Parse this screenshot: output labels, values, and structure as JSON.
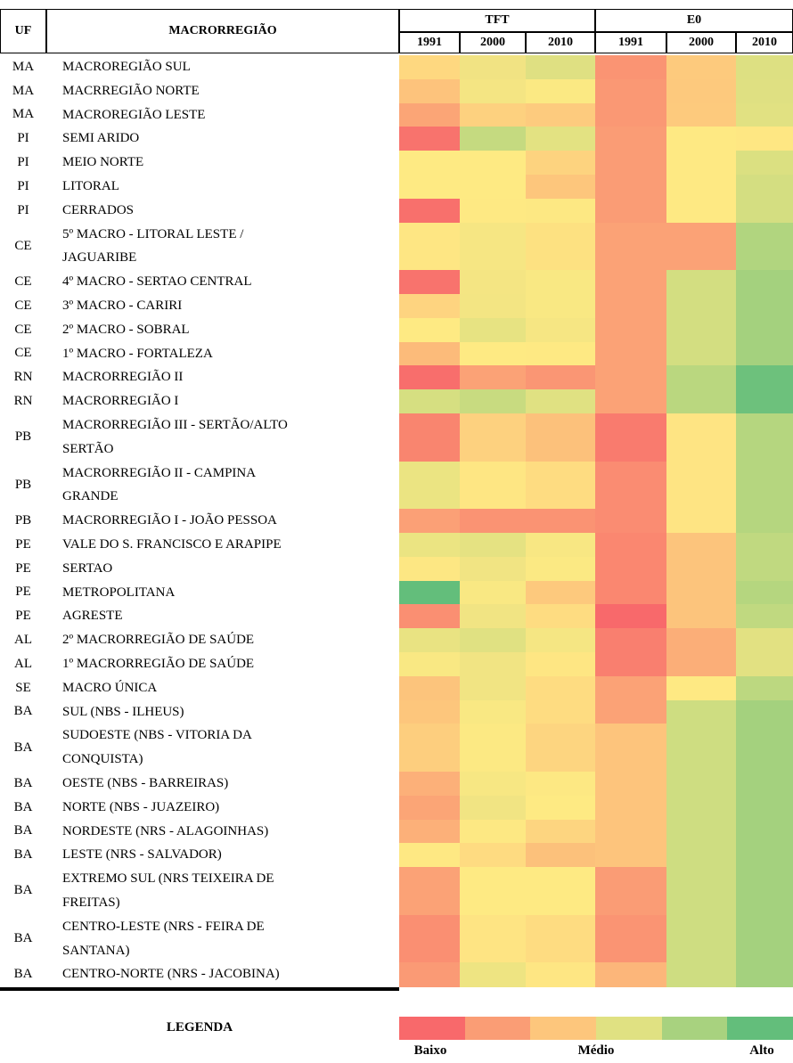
{
  "table": {
    "headers": {
      "uf": "UF",
      "macro": "MACRORREGIÃO",
      "groups": [
        "TFT",
        "E0"
      ],
      "years": [
        "1991",
        "2000",
        "2010",
        "1991",
        "2000",
        "2010"
      ]
    },
    "rows": [
      {
        "uf": "MA",
        "macro": [
          "MACROREGIÃO SUL"
        ],
        "colors": [
          "#fed880",
          "#f1e383",
          "#dfe082",
          "#fa9473",
          "#fdca7d",
          "#dde082"
        ]
      },
      {
        "uf": "MA",
        "macro": [
          "MACRREGIÃO NORTE"
        ],
        "colors": [
          "#fdc37c",
          "#f4e583",
          "#fbe983",
          "#fa9874",
          "#fdc97d",
          "#dfe082"
        ]
      },
      {
        "uf": "MA",
        "macro": [
          "MACROREGIÃO LESTE"
        ],
        "colors": [
          "#fba576",
          "#fdd17f",
          "#fdcb7e",
          "#fa9874",
          "#fdca7d",
          "#e1e182"
        ]
      },
      {
        "uf": "PI",
        "macro": [
          "SEMI ARIDO"
        ],
        "colors": [
          "#f8736d",
          "#c5da80",
          "#e3e282",
          "#fa9c75",
          "#fee983",
          "#fee783"
        ]
      },
      {
        "uf": "PI",
        "macro": [
          "MEIO NORTE"
        ],
        "colors": [
          "#feea83",
          "#feea83",
          "#fdd37f",
          "#fa9c75",
          "#fee983",
          "#dbe081"
        ]
      },
      {
        "uf": "PI",
        "macro": [
          "LITORAL"
        ],
        "colors": [
          "#feea83",
          "#feea83",
          "#fdc67c",
          "#fa9c75",
          "#fee983",
          "#d4de81"
        ]
      },
      {
        "uf": "PI",
        "macro": [
          "CERRADOS"
        ],
        "colors": [
          "#f8706c",
          "#fee983",
          "#fde883",
          "#fa9c75",
          "#fee983",
          "#d4de81"
        ]
      },
      {
        "uf": "CE",
        "macro": [
          "5º MACRO - LITORAL LESTE /",
          "JAGUARIBE"
        ],
        "colors": [
          "#fee683",
          "#f6e683",
          "#fde181",
          "#fba276",
          "#fba276",
          "#b1d57f"
        ]
      },
      {
        "uf": "CE",
        "macro": [
          "4º MACRO - SERTAO CENTRAL"
        ],
        "colors": [
          "#f8736d",
          "#f4e583",
          "#f9e883",
          "#fba276",
          "#d3de81",
          "#a4d17e"
        ]
      },
      {
        "uf": "CE",
        "macro": [
          "3º MACRO - CARIRI"
        ],
        "colors": [
          "#fed480",
          "#f3e583",
          "#f9e883",
          "#fba276",
          "#d3de81",
          "#a4d17e"
        ]
      },
      {
        "uf": "CE",
        "macro": [
          "2º MACRO - SOBRAL"
        ],
        "colors": [
          "#feea83",
          "#e7e382",
          "#f6e683",
          "#fba276",
          "#d3de81",
          "#a4d17e"
        ]
      },
      {
        "uf": "CE",
        "macro": [
          "1º MACRO - FORTALEZA"
        ],
        "colors": [
          "#fcbb7a",
          "#feea83",
          "#fee983",
          "#fba276",
          "#d3de81",
          "#a4d17e"
        ]
      },
      {
        "uf": "RN",
        "macro": [
          "MACRORREGIÃO II"
        ],
        "colors": [
          "#f86e6c",
          "#fba276",
          "#fa9674",
          "#fba276",
          "#bad77f",
          "#6dc17c"
        ]
      },
      {
        "uf": "RN",
        "macro": [
          "MACRORREGIÃO I"
        ],
        "colors": [
          "#d6df81",
          "#c8db80",
          "#e0e182",
          "#fba276",
          "#bad77f",
          "#6dc17c"
        ]
      },
      {
        "uf": "PB",
        "macro": [
          "MACRORREGIÃO III - SERTÃO/ALTO",
          "SERTÃO"
        ],
        "colors": [
          "#f9856f",
          "#fdd17f",
          "#fcc17b",
          "#f97b6e",
          "#fee483",
          "#b5d67f"
        ]
      },
      {
        "uf": "PB",
        "macro": [
          "MACRORREGIÃO II - CAMPINA",
          "GRANDE"
        ],
        "colors": [
          "#ebe482",
          "#fee683",
          "#fedc81",
          "#fa8c72",
          "#fee483",
          "#b5d67f"
        ]
      },
      {
        "uf": "PB",
        "macro": [
          "MACRORREGIÃO I - JOÃO PESSOA"
        ],
        "colors": [
          "#fba076",
          "#fa9373",
          "#fa9373",
          "#fa8c72",
          "#fee483",
          "#b5d67f"
        ]
      },
      {
        "uf": "PE",
        "macro": [
          "VALE DO S. FRANCISCO E ARAPIPE"
        ],
        "colors": [
          "#ebe482",
          "#e5e282",
          "#f8e783",
          "#fa8770",
          "#fcc47c",
          "#c0d980"
        ]
      },
      {
        "uf": "PE",
        "macro": [
          "SERTAO"
        ],
        "colors": [
          "#fde783",
          "#f1e483",
          "#fbe983",
          "#fa8770",
          "#fcc47c",
          "#c0d980"
        ]
      },
      {
        "uf": "PE",
        "macro": [
          "METROPOLITANA"
        ],
        "colors": [
          "#63be7b",
          "#f9e883",
          "#fdc97d",
          "#fa8770",
          "#fcc47c",
          "#b5d67f"
        ]
      },
      {
        "uf": "PE",
        "macro": [
          "AGRESTE"
        ],
        "colors": [
          "#fa8f72",
          "#f1e483",
          "#fedc81",
          "#f8696b",
          "#fcc47c",
          "#c0d980"
        ]
      },
      {
        "uf": "AL",
        "macro": [
          "2º MACRORREGIÃO DE SAÚDE"
        ],
        "colors": [
          "#e9e382",
          "#e0e182",
          "#f5e683",
          "#f97f6f",
          "#fbae78",
          "#e2e182"
        ]
      },
      {
        "uf": "AL",
        "macro": [
          "1º MACRORREGIÃO DE SAÚDE"
        ],
        "colors": [
          "#f9e883",
          "#f1e483",
          "#fee683",
          "#f97f6f",
          "#fbae78",
          "#e2e182"
        ]
      },
      {
        "uf": "SE",
        "macro": [
          "MACRO ÚNICA"
        ],
        "colors": [
          "#fcc47c",
          "#f1e483",
          "#fedc81",
          "#fba276",
          "#fee983",
          "#bcd880"
        ]
      },
      {
        "uf": "BA",
        "macro": [
          "SUL (NBS - ILHEUS)"
        ],
        "colors": [
          "#fdc67c",
          "#f9e883",
          "#fedc81",
          "#fba276",
          "#cedd81",
          "#a4d17e"
        ]
      },
      {
        "uf": "BA",
        "macro": [
          "SUDOESTE (NBS - VITORIA DA",
          "CONQUISTA)"
        ],
        "colors": [
          "#fdce7e",
          "#fce983",
          "#fdd580",
          "#fdc47c",
          "#cedd81",
          "#a4d17e"
        ]
      },
      {
        "uf": "BA",
        "macro": [
          "OESTE (NBS - BARREIRAS)"
        ],
        "colors": [
          "#fcb079",
          "#f7e783",
          "#fde883",
          "#fdc47c",
          "#cedd81",
          "#a4d17e"
        ]
      },
      {
        "uf": "BA",
        "macro": [
          "NORTE (NBS - JUAZEIRO)"
        ],
        "colors": [
          "#fba576",
          "#f1e483",
          "#feea83",
          "#fdc47c",
          "#cedd81",
          "#a4d17e"
        ]
      },
      {
        "uf": "BA",
        "macro": [
          "NORDESTE (NRS - ALAGOINHAS)"
        ],
        "colors": [
          "#fcb079",
          "#fde883",
          "#fdd580",
          "#fdc47c",
          "#cedd81",
          "#a4d17e"
        ]
      },
      {
        "uf": "BA",
        "macro": [
          "LESTE (NRS - SALVADOR)"
        ],
        "colors": [
          "#fee883",
          "#fedb81",
          "#fcc17b",
          "#fdc47c",
          "#cedd81",
          "#a4d17e"
        ]
      },
      {
        "uf": "BA",
        "macro": [
          "EXTREMO SUL (NRS TEIXEIRA DE",
          "FREITAS)"
        ],
        "colors": [
          "#fba276",
          "#feea83",
          "#feea83",
          "#fa9c75",
          "#cedd81",
          "#a4d17e"
        ]
      },
      {
        "uf": "BA",
        "macro": [
          "CENTRO-LESTE (NRS - FEIRA DE",
          "SANTANA)"
        ],
        "colors": [
          "#fa8f72",
          "#fee483",
          "#fedc81",
          "#fa9473",
          "#cedd81",
          "#a4d17e"
        ]
      },
      {
        "uf": "BA",
        "macro": [
          "CENTRO-NORTE (NRS - JACOBINA)"
        ],
        "colors": [
          "#fa9a75",
          "#eee482",
          "#fee683",
          "#fcb67a",
          "#cedd81",
          "#a4d17e"
        ]
      }
    ]
  },
  "legend": {
    "title": "LEGENDA",
    "colors": [
      "#f8696b",
      "#fa9d75",
      "#fdc67c",
      "#e0e182",
      "#a8d27f",
      "#63be7b"
    ],
    "labels": [
      "Baixo",
      "Médio",
      "Alto"
    ]
  }
}
